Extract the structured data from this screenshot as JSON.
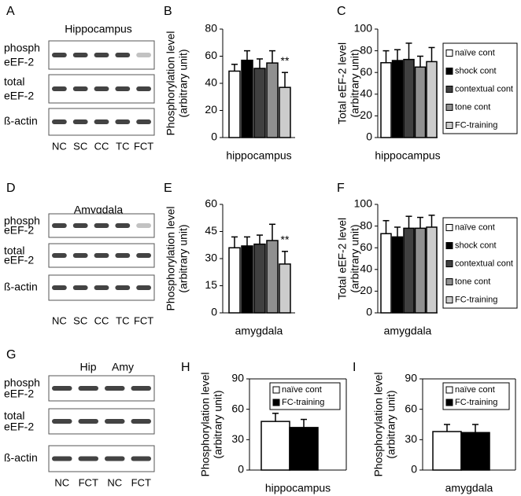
{
  "blots": [
    {
      "letter": "A",
      "title": "Hippocampus",
      "rows": [
        [
          "phosph",
          "eEF-2"
        ],
        [
          "total",
          "eEF-2"
        ],
        [
          "ß-actin"
        ]
      ],
      "lanes": [
        "NC",
        "SC",
        "CC",
        "TC",
        "FCT"
      ]
    },
    {
      "letter": "D",
      "title": "Amygdala",
      "rows": [
        [
          "phosph",
          "eEF-2"
        ],
        [
          "total",
          "eEF-2"
        ],
        [
          "ß-actin"
        ]
      ],
      "lanes": [
        "NC",
        "SC",
        "CC",
        "TC",
        "FCT"
      ]
    },
    {
      "letter": "G",
      "groups": [
        "Hip",
        "Amy"
      ],
      "rows": [
        [
          "phosph",
          "eEF-2"
        ],
        [
          "total",
          "eEF-2"
        ],
        [
          "ß-actin"
        ]
      ],
      "lanes": [
        "NC",
        "FCT",
        "NC",
        "FCT"
      ]
    }
  ],
  "chart_data": [
    {
      "type": "bar",
      "letter": "B",
      "ylabel": [
        "Phosphorylation level",
        "(arbitrary unit)"
      ],
      "xlabel": "hippocampus",
      "ylim": [
        0,
        80
      ],
      "yticks": [
        0,
        20,
        40,
        60,
        80
      ],
      "values": [
        49,
        57,
        51,
        55,
        37
      ],
      "errors": [
        5,
        7,
        7,
        9,
        11
      ],
      "colors": [
        "#ffffff",
        "#000000",
        "#404040",
        "#909090",
        "#cccccc"
      ],
      "annotation": "**"
    },
    {
      "type": "bar",
      "letter": "C",
      "ylabel": [
        "Total eEF-2 level",
        "(arbitrary unit)"
      ],
      "xlabel": "hippocampus",
      "ylim": [
        0,
        100
      ],
      "yticks": [
        0,
        20,
        40,
        60,
        80,
        100
      ],
      "legend": "outside-right",
      "series": [
        {
          "name": "naïve cont",
          "color": "#ffffff",
          "values": [
            69
          ],
          "errors": [
            11
          ]
        },
        {
          "name": "shock cont",
          "color": "#000000",
          "values": [
            71
          ],
          "errors": [
            10
          ]
        },
        {
          "name": "contextual cont",
          "color": "#404040",
          "values": [
            72
          ],
          "errors": [
            15
          ]
        },
        {
          "name": "tone cont",
          "color": "#909090",
          "values": [
            65
          ],
          "errors": [
            10
          ]
        },
        {
          "name": "FC-training",
          "color": "#cccccc",
          "values": [
            70
          ],
          "errors": [
            13
          ]
        }
      ]
    },
    {
      "type": "bar",
      "letter": "E",
      "ylabel": [
        "Phosphorylation level",
        "(arbitrary unit)"
      ],
      "xlabel": "amygdala",
      "ylim": [
        0,
        60
      ],
      "yticks": [
        0,
        15,
        30,
        45,
        60
      ],
      "values": [
        36,
        37,
        38,
        40,
        27
      ],
      "errors": [
        6,
        5,
        5,
        9,
        7
      ],
      "colors": [
        "#ffffff",
        "#000000",
        "#404040",
        "#909090",
        "#cccccc"
      ],
      "annotation": "**"
    },
    {
      "type": "bar",
      "letter": "F",
      "ylabel": [
        "Total eEF-2 level",
        "(arbitrary unit)"
      ],
      "xlabel": "amygdala",
      "ylim": [
        0,
        100
      ],
      "yticks": [
        0,
        20,
        40,
        60,
        80,
        100
      ],
      "legend": "outside-right",
      "series": [
        {
          "name": "naïve cont",
          "color": "#ffffff",
          "values": [
            73
          ],
          "errors": [
            12
          ]
        },
        {
          "name": "shock cont",
          "color": "#000000",
          "values": [
            70
          ],
          "errors": [
            9
          ]
        },
        {
          "name": "contextual cont",
          "color": "#404040",
          "values": [
            78
          ],
          "errors": [
            11
          ]
        },
        {
          "name": "tone cont",
          "color": "#909090",
          "values": [
            78
          ],
          "errors": [
            10
          ]
        },
        {
          "name": "FC-training",
          "color": "#cccccc",
          "values": [
            79
          ],
          "errors": [
            11
          ]
        }
      ]
    },
    {
      "type": "bar",
      "letter": "H",
      "ylabel": [
        "Phosphorylation level",
        "(arbitrary unit)"
      ],
      "xlabel": "hippocampus",
      "ylim": [
        0,
        90
      ],
      "yticks": [
        0,
        30,
        60,
        90
      ],
      "legend": "upper-right",
      "series": [
        {
          "name": "naïve cont",
          "color": "#ffffff",
          "values": [
            48
          ],
          "errors": [
            8
          ]
        },
        {
          "name": "FC-training",
          "color": "#000000",
          "values": [
            42
          ],
          "errors": [
            8
          ]
        }
      ]
    },
    {
      "type": "bar",
      "letter": "I",
      "ylabel": [
        "Phosphorylation level",
        "(arbitrary unit)"
      ],
      "xlabel": "amygdala",
      "ylim": [
        0,
        90
      ],
      "yticks": [
        0,
        30,
        60,
        90
      ],
      "legend": "upper-right",
      "series": [
        {
          "name": "naïve cont",
          "color": "#ffffff",
          "values": [
            38
          ],
          "errors": [
            7
          ]
        },
        {
          "name": "FC-training",
          "color": "#000000",
          "values": [
            37
          ],
          "errors": [
            8
          ]
        }
      ]
    }
  ]
}
